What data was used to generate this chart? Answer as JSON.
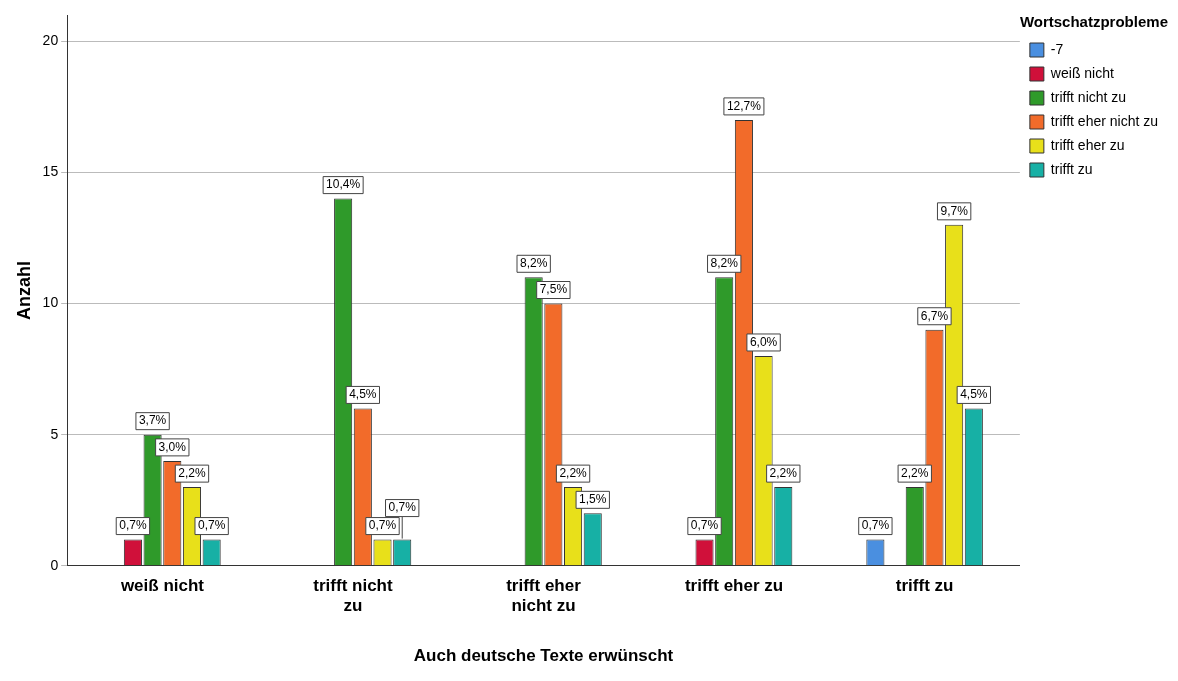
{
  "chart_data": {
    "type": "bar",
    "xlabel": "Auch deutsche Texte erwünscht",
    "ylabel": "Anzahl",
    "legend_title": "Wortschatzprobleme",
    "categories": [
      "weiß nicht",
      "trifft nicht zu",
      "trifft eher nicht zu",
      "trifft eher zu",
      "trifft zu"
    ],
    "ylim": [
      0,
      21
    ],
    "yticks": [
      0,
      5,
      10,
      15,
      20
    ],
    "grid": "y",
    "legend": "top right",
    "series": [
      {
        "name": "-7",
        "color": "#4a8fe0",
        "values": [
          null,
          null,
          null,
          null,
          1
        ]
      },
      {
        "name": "weiß nicht",
        "color": "#d0103a",
        "values": [
          1,
          null,
          null,
          1,
          null
        ]
      },
      {
        "name": "trifft nicht zu",
        "color": "#2f9a2a",
        "values": [
          5,
          14,
          11,
          11,
          3
        ]
      },
      {
        "name": "trifft eher nicht zu",
        "color": "#f26b2a",
        "values": [
          4,
          6,
          10,
          17,
          9
        ]
      },
      {
        "name": "trifft eher zu",
        "color": "#e8e01a",
        "values": [
          3,
          1,
          3,
          8,
          13
        ]
      },
      {
        "name": "trifft zu",
        "color": "#17b0a5",
        "values": [
          1,
          1,
          2,
          3,
          6
        ]
      }
    ],
    "annotations": [
      "0,7%",
      "3,7%",
      "3,0%",
      "2,2%",
      "0,7%",
      "10,4%",
      "4,5%",
      "0,7%",
      "0,7%",
      "8,2%",
      "7,5%",
      "2,2%",
      "1,5%",
      "0,7%",
      "8,2%",
      "12,7%",
      "6,0%",
      "2,2%",
      "0,7%",
      "2,2%",
      "6,7%",
      "9,7%",
      "4,5%"
    ]
  }
}
